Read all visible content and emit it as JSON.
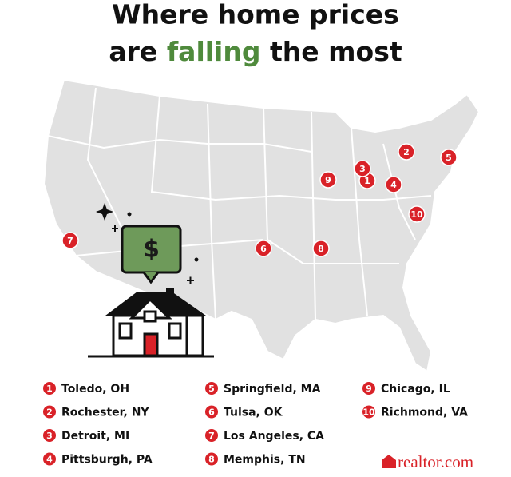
{
  "title": {
    "line1": "Where home prices",
    "line2_start": "are",
    "highlight": "falling",
    "line2_end": "the most"
  },
  "price_icon": "$",
  "rankings": [
    {
      "rank": "1",
      "city": "Toledo, OH"
    },
    {
      "rank": "2",
      "city": "Rochester, NY"
    },
    {
      "rank": "3",
      "city": "Detroit, MI"
    },
    {
      "rank": "4",
      "city": "Pittsburgh, PA"
    },
    {
      "rank": "5",
      "city": "Springfield, MA"
    },
    {
      "rank": "6",
      "city": "Tulsa, OK"
    },
    {
      "rank": "7",
      "city": "Los Angeles, CA"
    },
    {
      "rank": "8",
      "city": "Memphis, TN"
    },
    {
      "rank": "9",
      "city": "Chicago, IL"
    },
    {
      "rank": "10",
      "city": "Richmond, VA"
    }
  ],
  "brand": "realtor.com"
}
